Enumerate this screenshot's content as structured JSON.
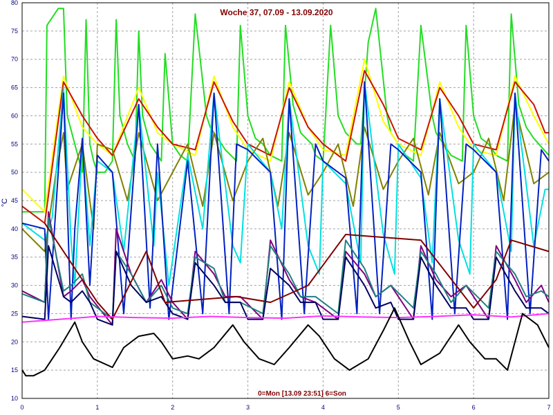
{
  "chart_data": {
    "type": "line",
    "title": "Woche 37, 07.09 - 13.09.2020",
    "xlabel": "0=Mon [13.09 23:51] 6=Son",
    "ylabel": "°C",
    "xlim": [
      0,
      7
    ],
    "ylim": [
      10,
      80
    ],
    "x_ticks": [
      0,
      1,
      2,
      3,
      4,
      5,
      6,
      7
    ],
    "y_ticks": [
      10,
      15,
      20,
      25,
      30,
      35,
      40,
      45,
      50,
      55,
      60,
      65,
      70,
      75,
      80
    ],
    "grid": true,
    "series": [
      {
        "color": "#22dd22",
        "x": [
          0,
          0.3,
          0.33,
          0.48,
          0.55,
          0.6,
          0.8,
          0.85,
          0.9,
          0.95,
          1.0,
          1.1,
          1.2,
          1.25,
          1.3,
          1.4,
          1.5,
          1.55,
          1.6,
          1.7,
          1.85,
          1.9,
          2.0,
          2.1,
          2.2,
          2.3,
          2.45,
          2.5,
          2.6,
          2.7,
          2.85,
          2.9,
          3.0,
          3.1,
          3.2,
          3.3,
          3.45,
          3.5,
          3.6,
          3.7,
          3.85,
          3.9,
          4.0,
          4.1,
          4.2,
          4.3,
          4.45,
          4.5,
          4.6,
          4.7,
          4.85,
          4.9,
          5.0,
          5.1,
          5.2,
          5.3,
          5.45,
          5.5,
          5.6,
          5.7,
          5.85,
          5.9,
          6.0,
          6.1,
          6.2,
          6.3,
          6.45,
          6.5,
          6.6,
          6.7,
          6.8,
          7.0
        ],
        "y": [
          43,
          43,
          76,
          79,
          79,
          60,
          50,
          77,
          55,
          52,
          50,
          50,
          52,
          77,
          60,
          55,
          52,
          75,
          60,
          55,
          52,
          71,
          55,
          53,
          52,
          78,
          60,
          58,
          56,
          54,
          52,
          76,
          60,
          56,
          55,
          53,
          52,
          76,
          62,
          57,
          55,
          53,
          52,
          76,
          60,
          57,
          55,
          55,
          73,
          79,
          60,
          57,
          55,
          53,
          52,
          76,
          60,
          57,
          55,
          53,
          52,
          76,
          60,
          56,
          55,
          53,
          52,
          78,
          62,
          58,
          56,
          53
        ]
      },
      {
        "color": "#ffff00",
        "x": [
          0,
          0.3,
          0.55,
          0.8,
          1.0,
          1.2,
          1.55,
          1.8,
          2.0,
          2.3,
          2.55,
          2.8,
          3.0,
          3.3,
          3.55,
          3.8,
          4.0,
          4.3,
          4.55,
          4.8,
          5.0,
          5.3,
          5.55,
          5.8,
          6.0,
          6.3,
          6.55,
          6.8,
          7.0
        ],
        "y": [
          47,
          43,
          67,
          58,
          55,
          53,
          65,
          57,
          55,
          53,
          67,
          58,
          54,
          52,
          66,
          58,
          54,
          53,
          70,
          59,
          55,
          53,
          66,
          58,
          54,
          53,
          67,
          60,
          55
        ]
      },
      {
        "color": "#cc1100",
        "x": [
          0,
          0.3,
          0.55,
          0.8,
          1.0,
          1.2,
          1.55,
          1.8,
          2.0,
          2.3,
          2.55,
          2.8,
          3.0,
          3.3,
          3.55,
          3.8,
          4.0,
          4.3,
          4.55,
          4.8,
          5.0,
          5.3,
          5.55,
          5.8,
          6.0,
          6.3,
          6.55,
          6.8,
          6.95,
          7.0
        ],
        "y": [
          44,
          41,
          66,
          60,
          56,
          53,
          63,
          58,
          55,
          54,
          66,
          59,
          55,
          53,
          65,
          58,
          55,
          52,
          68,
          62,
          56,
          54,
          65,
          60,
          55,
          54,
          66,
          62,
          57,
          57
        ]
      },
      {
        "color": "#808000",
        "x": [
          0,
          0.3,
          0.45,
          0.55,
          0.6,
          0.8,
          0.95,
          1.0,
          1.2,
          1.4,
          1.55,
          1.8,
          2.0,
          2.2,
          2.4,
          2.55,
          2.8,
          3.0,
          3.2,
          3.4,
          3.55,
          3.8,
          4.0,
          4.2,
          4.4,
          4.55,
          4.8,
          5.0,
          5.2,
          5.4,
          5.55,
          5.8,
          6.0,
          6.2,
          6.4,
          6.55,
          6.8,
          7.0
        ],
        "y": [
          40,
          36,
          50,
          57,
          47,
          55,
          40,
          55,
          54,
          45,
          57,
          45,
          50,
          55,
          44,
          57,
          45,
          52,
          56,
          44,
          57,
          46,
          50,
          55,
          44,
          58,
          47,
          52,
          56,
          46,
          57,
          48,
          50,
          56,
          45,
          62,
          48,
          50
        ]
      },
      {
        "color": "#00e0e0",
        "x": [
          0,
          0.3,
          0.4,
          0.55,
          0.65,
          0.7,
          0.8,
          0.9,
          1.0,
          1.2,
          1.35,
          1.55,
          1.75,
          1.8,
          1.95,
          2.2,
          2.4,
          2.55,
          2.8,
          2.9,
          3.0,
          3.3,
          3.45,
          3.55,
          3.8,
          3.95,
          4.0,
          4.3,
          4.5,
          4.55,
          4.8,
          4.95,
          5.0,
          5.3,
          5.45,
          5.55,
          5.8,
          5.95,
          6.0,
          6.3,
          6.5,
          6.55,
          6.8,
          6.95,
          7.0
        ],
        "y": [
          41,
          38,
          42,
          65,
          38,
          30,
          55,
          37,
          52,
          50,
          36,
          62,
          37,
          50,
          30,
          53,
          40,
          64,
          37,
          34,
          55,
          50,
          40,
          63,
          37,
          32,
          52,
          48,
          34,
          66,
          39,
          32,
          55,
          49,
          34,
          63,
          38,
          32,
          55,
          50,
          36,
          64,
          37,
          47,
          47
        ]
      },
      {
        "color": "#0020c0",
        "x": [
          0,
          0.3,
          0.35,
          0.55,
          0.65,
          0.7,
          0.8,
          0.9,
          1.0,
          1.2,
          1.35,
          1.55,
          1.7,
          1.8,
          1.95,
          2.2,
          2.4,
          2.55,
          2.75,
          2.85,
          3.0,
          3.3,
          3.45,
          3.55,
          3.75,
          3.9,
          4.0,
          4.3,
          4.45,
          4.55,
          4.75,
          4.9,
          5.0,
          5.3,
          5.45,
          5.55,
          5.75,
          5.9,
          6.0,
          6.3,
          6.45,
          6.55,
          6.75,
          6.9,
          7.0
        ],
        "y": [
          41,
          40,
          24,
          64,
          24,
          40,
          56,
          30,
          53,
          50,
          25,
          62,
          26,
          55,
          24,
          52,
          25,
          64,
          25,
          55,
          54,
          50,
          24,
          63,
          25,
          55,
          52,
          49,
          25,
          66,
          25,
          55,
          54,
          50,
          24,
          63,
          25,
          55,
          54,
          50,
          24,
          64,
          25,
          54,
          52
        ]
      },
      {
        "color": "#800080",
        "x": [
          0,
          0.3,
          0.35,
          0.55,
          0.65,
          0.8,
          0.9,
          1.2,
          1.25,
          1.45,
          1.65,
          1.85,
          2.0,
          2.2,
          2.3,
          2.55,
          2.7,
          2.9,
          3.2,
          3.3,
          3.55,
          3.7,
          3.9,
          4.2,
          4.3,
          4.55,
          4.7,
          4.9,
          5.2,
          5.3,
          5.5,
          5.7,
          5.9,
          6.2,
          6.3,
          6.55,
          6.7,
          6.9,
          7.0
        ],
        "y": [
          29,
          27,
          43,
          28,
          29,
          31,
          28,
          23,
          40,
          32,
          27,
          31,
          27,
          24,
          36,
          32,
          28,
          28,
          24,
          38,
          31,
          28,
          27,
          24,
          36,
          32,
          28,
          30,
          24,
          37,
          31,
          28,
          30,
          24,
          37,
          31,
          27,
          30,
          27
        ]
      },
      {
        "color": "#208080",
        "x": [
          0,
          0.3,
          0.35,
          0.55,
          0.65,
          0.8,
          0.9,
          1.2,
          1.25,
          1.45,
          1.65,
          1.85,
          2.0,
          2.2,
          2.3,
          2.55,
          2.7,
          2.9,
          3.2,
          3.3,
          3.55,
          3.7,
          3.9,
          4.2,
          4.3,
          4.55,
          4.7,
          4.9,
          5.2,
          5.3,
          5.5,
          5.7,
          5.9,
          6.2,
          6.3,
          6.55,
          6.7,
          6.9,
          7.0
        ],
        "y": [
          28.5,
          27,
          42,
          29,
          30,
          32,
          27,
          24,
          36,
          32,
          27,
          30,
          26,
          25,
          35,
          33,
          27,
          27,
          25,
          37,
          32,
          28,
          28,
          25,
          38,
          33,
          28,
          30,
          26,
          36,
          32,
          27,
          30,
          26,
          36,
          32,
          28,
          29,
          28
        ]
      },
      {
        "color": "#000060",
        "x": [
          0,
          0.3,
          0.35,
          0.55,
          0.65,
          0.8,
          0.9,
          1.0,
          1.2,
          1.25,
          1.45,
          1.65,
          1.85,
          2.0,
          2.2,
          2.3,
          2.55,
          2.7,
          2.9,
          3.0,
          3.2,
          3.3,
          3.55,
          3.7,
          3.9,
          4.0,
          4.2,
          4.3,
          4.55,
          4.7,
          4.9,
          5.0,
          5.2,
          5.3,
          5.5,
          5.7,
          5.9,
          6.0,
          6.2,
          6.3,
          6.55,
          6.7,
          6.9,
          7.0
        ],
        "y": [
          24.5,
          24,
          37,
          28,
          27,
          29,
          27,
          24,
          23,
          36,
          30,
          27,
          28,
          25,
          24,
          34,
          30,
          27,
          27,
          24,
          24,
          33,
          30,
          27,
          27,
          24,
          24,
          35,
          30,
          26,
          27,
          24,
          24,
          35,
          30,
          26,
          26,
          24,
          24,
          35,
          29,
          26,
          26,
          25
        ]
      },
      {
        "color": "#800000",
        "x": [
          0.3,
          1.0,
          1.2,
          1.65,
          1.9,
          2.85,
          3.3,
          3.8,
          4.3,
          5.3,
          6.0,
          6.3,
          6.5,
          7.0
        ],
        "y": [
          41,
          27,
          24,
          36,
          27,
          28,
          27,
          30,
          39,
          38,
          26,
          31,
          38,
          36
        ]
      },
      {
        "color": "#ff30ff",
        "x": [
          0,
          0.5,
          1.0,
          1.5,
          2.0,
          2.5,
          3.0,
          3.5,
          4.0,
          4.5,
          5.0,
          5.5,
          6.0,
          6.5,
          7.0
        ],
        "y": [
          23.5,
          24,
          24.5,
          24.3,
          24.2,
          24.5,
          24.3,
          24.2,
          24.6,
          24.4,
          24.3,
          24.5,
          24.8,
          24.4,
          25
        ]
      },
      {
        "color": "#000000",
        "x": [
          0,
          0.05,
          0.15,
          0.3,
          0.5,
          0.7,
          0.8,
          0.95,
          1.2,
          1.35,
          1.55,
          1.75,
          1.85,
          2.0,
          2.2,
          2.35,
          2.55,
          2.8,
          2.95,
          3.15,
          3.35,
          3.55,
          3.8,
          3.95,
          4.15,
          4.35,
          4.6,
          4.8,
          4.95,
          5.15,
          5.3,
          5.55,
          5.8,
          5.95,
          6.15,
          6.3,
          6.45,
          6.65,
          6.85,
          7.0
        ],
        "y": [
          15,
          14,
          14,
          15,
          19,
          23.5,
          20,
          17,
          15.5,
          19,
          21,
          21.5,
          20,
          17,
          17.5,
          17,
          19,
          23,
          20,
          17,
          16,
          19,
          23,
          21,
          17,
          15,
          17,
          22,
          26,
          20,
          16,
          18,
          23,
          20,
          17,
          17,
          15,
          25,
          23,
          19
        ]
      }
    ]
  }
}
